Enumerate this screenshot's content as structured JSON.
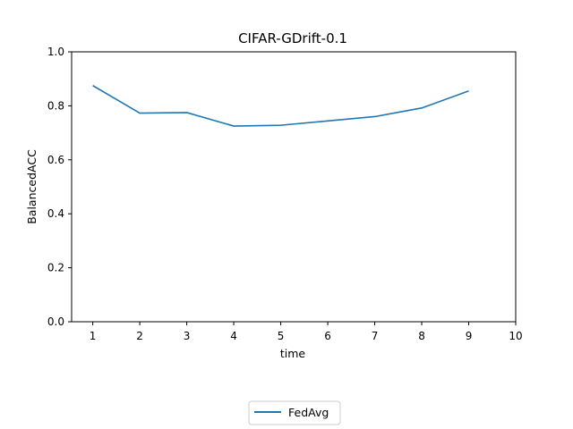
{
  "chart_data": {
    "type": "line",
    "title": "CIFAR-GDrift-0.1",
    "xlabel": "time",
    "ylabel": "BalancedACC",
    "xlim": [
      0.55,
      10.0
    ],
    "ylim": [
      0.0,
      1.0
    ],
    "x_ticks": [
      "1",
      "2",
      "3",
      "4",
      "5",
      "6",
      "7",
      "8",
      "9",
      "10"
    ],
    "y_ticks": [
      "0.0",
      "0.2",
      "0.4",
      "0.6",
      "0.8",
      "1.0"
    ],
    "grid": false,
    "legend_position": "bottom-center, below plot",
    "series": [
      {
        "name": "FedAvg",
        "color": "#1f77b4",
        "x": [
          1,
          2,
          3,
          4,
          5,
          6,
          7,
          8,
          9
        ],
        "y": [
          0.875,
          0.773,
          0.775,
          0.725,
          0.728,
          0.744,
          0.76,
          0.792,
          0.855
        ]
      }
    ]
  }
}
